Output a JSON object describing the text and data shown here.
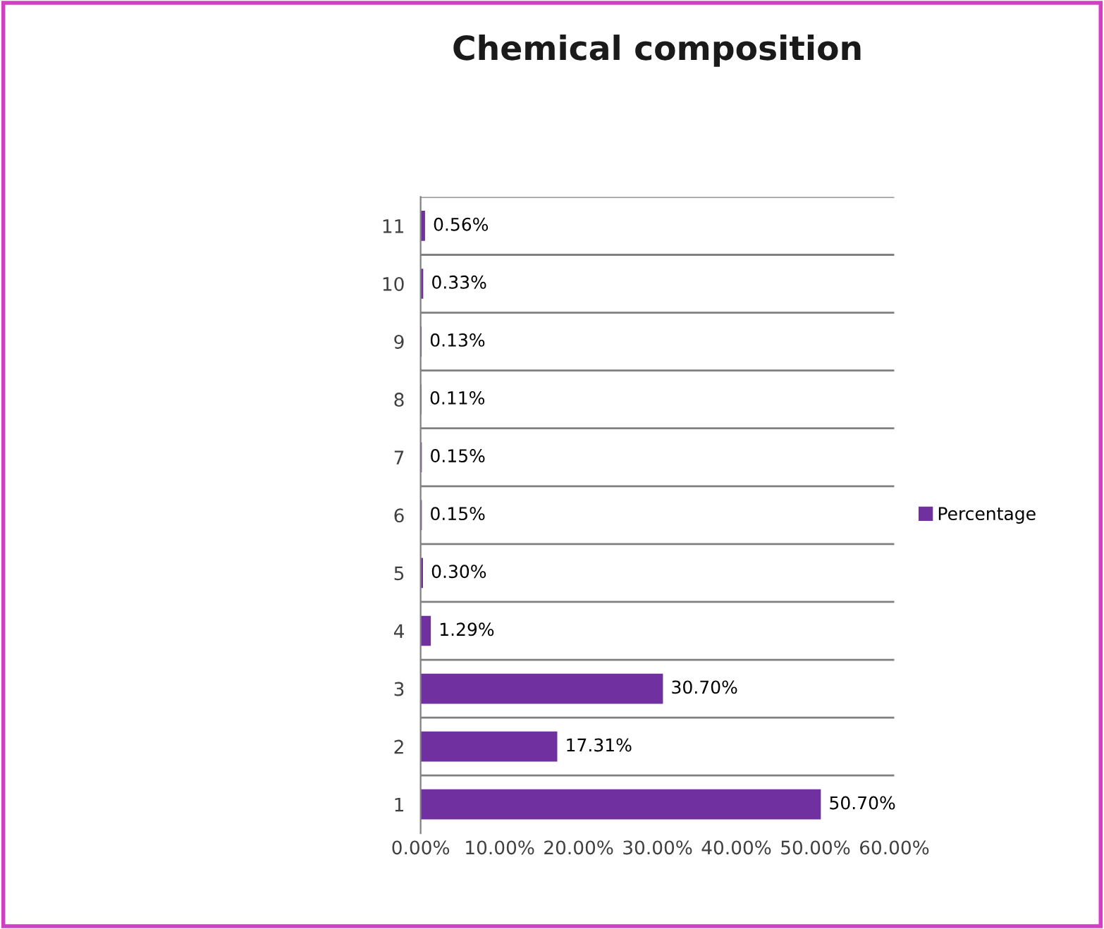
{
  "chart_data": {
    "type": "bar",
    "orientation": "horizontal",
    "title": "Chemical composition",
    "categories": [
      "11",
      "10",
      "9",
      "8",
      "7",
      "6",
      "5",
      "4",
      "3",
      "2",
      "1"
    ],
    "series": [
      {
        "name": "Percentage",
        "color": "#7030a0",
        "values": [
          0.56,
          0.33,
          0.13,
          0.11,
          0.15,
          0.15,
          0.3,
          1.29,
          30.7,
          17.31,
          50.7
        ],
        "value_labels": [
          "0.56%",
          "0.33%",
          "0.13%",
          "0.11%",
          "0.15%",
          "0.15%",
          "0.30%",
          "1.29%",
          "30.70%",
          "17.31%",
          "50.70%"
        ]
      }
    ],
    "xlim": [
      0,
      60
    ],
    "xticks": [
      {
        "value": 0,
        "label": "0.00%"
      },
      {
        "value": 10,
        "label": "10.00%"
      },
      {
        "value": 20,
        "label": "20.00%"
      },
      {
        "value": 30,
        "label": "30.00%"
      },
      {
        "value": 40,
        "label": "40.00%"
      },
      {
        "value": 50,
        "label": "50.00%"
      },
      {
        "value": 60,
        "label": "60.00%"
      }
    ],
    "grid": "y",
    "legend": "right"
  }
}
